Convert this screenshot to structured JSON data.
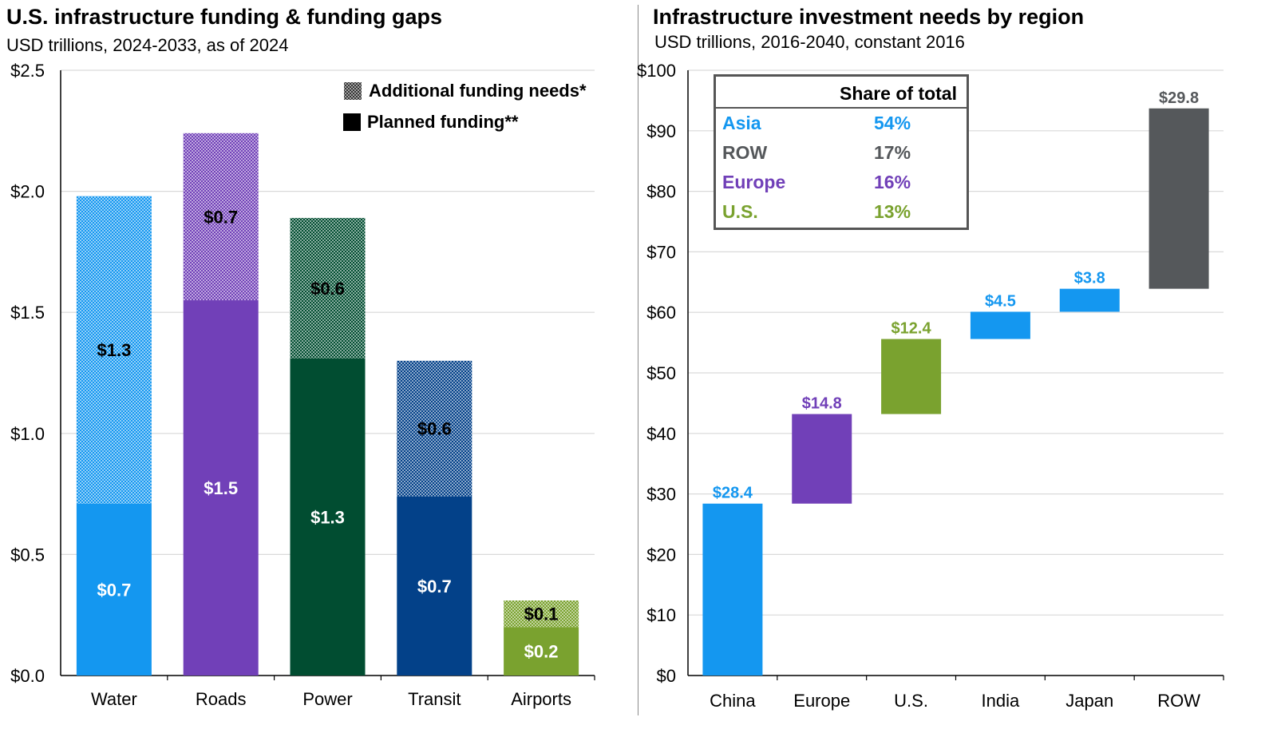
{
  "left": {
    "title": "U.S. infrastructure funding & funding gaps",
    "subtitle": "USD trillions, 2024-2033, as of 2024",
    "legend": {
      "additional": "Additional funding needs*",
      "planned": "Planned funding**"
    }
  },
  "right": {
    "title": "Infrastructure investment needs by region",
    "subtitle": "USD trillions, 2016-2040, constant 2016",
    "share_table": {
      "header": "Share of total",
      "rows": [
        {
          "name": "Asia",
          "value": "54%",
          "color": "#1497f0"
        },
        {
          "name": "ROW",
          "value": "17%",
          "color": "#55585b"
        },
        {
          "name": "Europe",
          "value": "16%",
          "color": "#7140b8"
        },
        {
          "name": "U.S.",
          "value": "13%",
          "color": "#7aa22f"
        }
      ]
    }
  },
  "chart_data": [
    {
      "type": "bar",
      "stacked": true,
      "title": "U.S. infrastructure funding & funding gaps",
      "subtitle": "USD trillions, 2024-2033, as of 2024",
      "categories": [
        "Water",
        "Roads",
        "Power",
        "Transit",
        "Airports"
      ],
      "series": [
        {
          "name": "Planned funding**",
          "values": [
            0.71,
            1.55,
            1.31,
            0.74,
            0.2
          ],
          "labels": [
            "$0.7",
            "$1.5",
            "$1.3",
            "$0.7",
            "$0.2"
          ]
        },
        {
          "name": "Additional funding needs*",
          "values": [
            1.27,
            0.69,
            0.58,
            0.56,
            0.11
          ],
          "labels": [
            "$1.3",
            "$0.7",
            "$0.6",
            "$0.6",
            "$0.1"
          ]
        }
      ],
      "colors": [
        "#1497f0",
        "#7140b8",
        "#014d31",
        "#034189",
        "#7aa22f"
      ],
      "yticks": [
        "$0.0",
        "$0.5",
        "$1.0",
        "$1.5",
        "$2.0",
        "$2.5"
      ],
      "ylim": [
        0,
        2.5
      ],
      "grid": true,
      "legend": "top-right"
    },
    {
      "type": "bar",
      "waterfall": true,
      "title": "Infrastructure investment needs by region",
      "subtitle": "USD trillions, 2016-2040, constant 2016",
      "categories": [
        "China",
        "Europe",
        "U.S.",
        "India",
        "Japan",
        "ROW"
      ],
      "values": [
        28.4,
        14.8,
        12.4,
        4.5,
        3.8,
        29.8
      ],
      "labels": [
        "$28.4",
        "$14.8",
        "$12.4",
        "$4.5",
        "$3.8",
        "$29.8"
      ],
      "colors": [
        "#1497f0",
        "#7140b8",
        "#7aa22f",
        "#1497f0",
        "#1497f0",
        "#55585b"
      ],
      "yticks": [
        "$0",
        "$10",
        "$20",
        "$30",
        "$40",
        "$50",
        "$60",
        "$70",
        "$80",
        "$90",
        "$100"
      ],
      "ylim": [
        0,
        100
      ],
      "grid": true
    }
  ]
}
